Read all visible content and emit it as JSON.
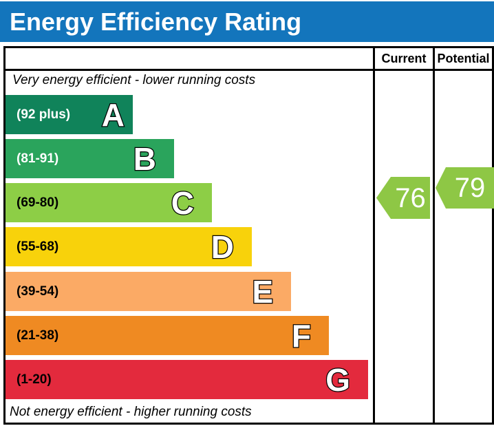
{
  "title": "Energy Efficiency Rating",
  "table": {
    "columns": {
      "current": "Current",
      "potential": "Potential"
    },
    "top_note": "Very energy efficient - lower running costs",
    "bottom_note": "Not energy efficient - higher running costs"
  },
  "colors": {
    "header_blue": "#1375bc",
    "border_black": "#000000",
    "arrow_green": "#8ec745"
  },
  "chart_data": {
    "type": "bar",
    "orientation": "horizontal",
    "title": "Energy Efficiency Rating",
    "scale_min": 1,
    "scale_max": 100,
    "column_headers": [
      "Current",
      "Potential"
    ],
    "top_annotation": "Very energy efficient - lower running costs",
    "bottom_annotation": "Not energy efficient - higher running costs",
    "bands": [
      {
        "letter": "A",
        "range_label": "(92 plus)",
        "range_min": 92,
        "range_max": 100,
        "color": "#10835a",
        "label_text_color": "#ffffff",
        "bar_length_frac": 0.35
      },
      {
        "letter": "B",
        "range_label": "(81-91)",
        "range_min": 81,
        "range_max": 91,
        "color": "#2aa45c",
        "label_text_color": "#ffffff",
        "bar_length_frac": 0.46
      },
      {
        "letter": "C",
        "range_label": "(69-80)",
        "range_min": 69,
        "range_max": 80,
        "color": "#8dce46",
        "label_text_color": "#000000",
        "bar_length_frac": 0.57
      },
      {
        "letter": "D",
        "range_label": "(55-68)",
        "range_min": 55,
        "range_max": 68,
        "color": "#f8d20b",
        "label_text_color": "#000000",
        "bar_length_frac": 0.68
      },
      {
        "letter": "E",
        "range_label": "(39-54)",
        "range_min": 39,
        "range_max": 54,
        "color": "#fbaa65",
        "label_text_color": "#000000",
        "bar_length_frac": 0.79
      },
      {
        "letter": "F",
        "range_label": "(21-38)",
        "range_min": 21,
        "range_max": 38,
        "color": "#ef8a22",
        "label_text_color": "#000000",
        "bar_length_frac": 0.89
      },
      {
        "letter": "G",
        "range_label": "(1-20)",
        "range_min": 1,
        "range_max": 20,
        "color": "#e32a3d",
        "label_text_color": "#000000",
        "bar_length_frac": 1.0
      }
    ],
    "markers": {
      "current": {
        "value": 76,
        "band": "C",
        "color": "#8ec745"
      },
      "potential": {
        "value": 79,
        "band": "C",
        "color": "#8ec745"
      }
    }
  }
}
